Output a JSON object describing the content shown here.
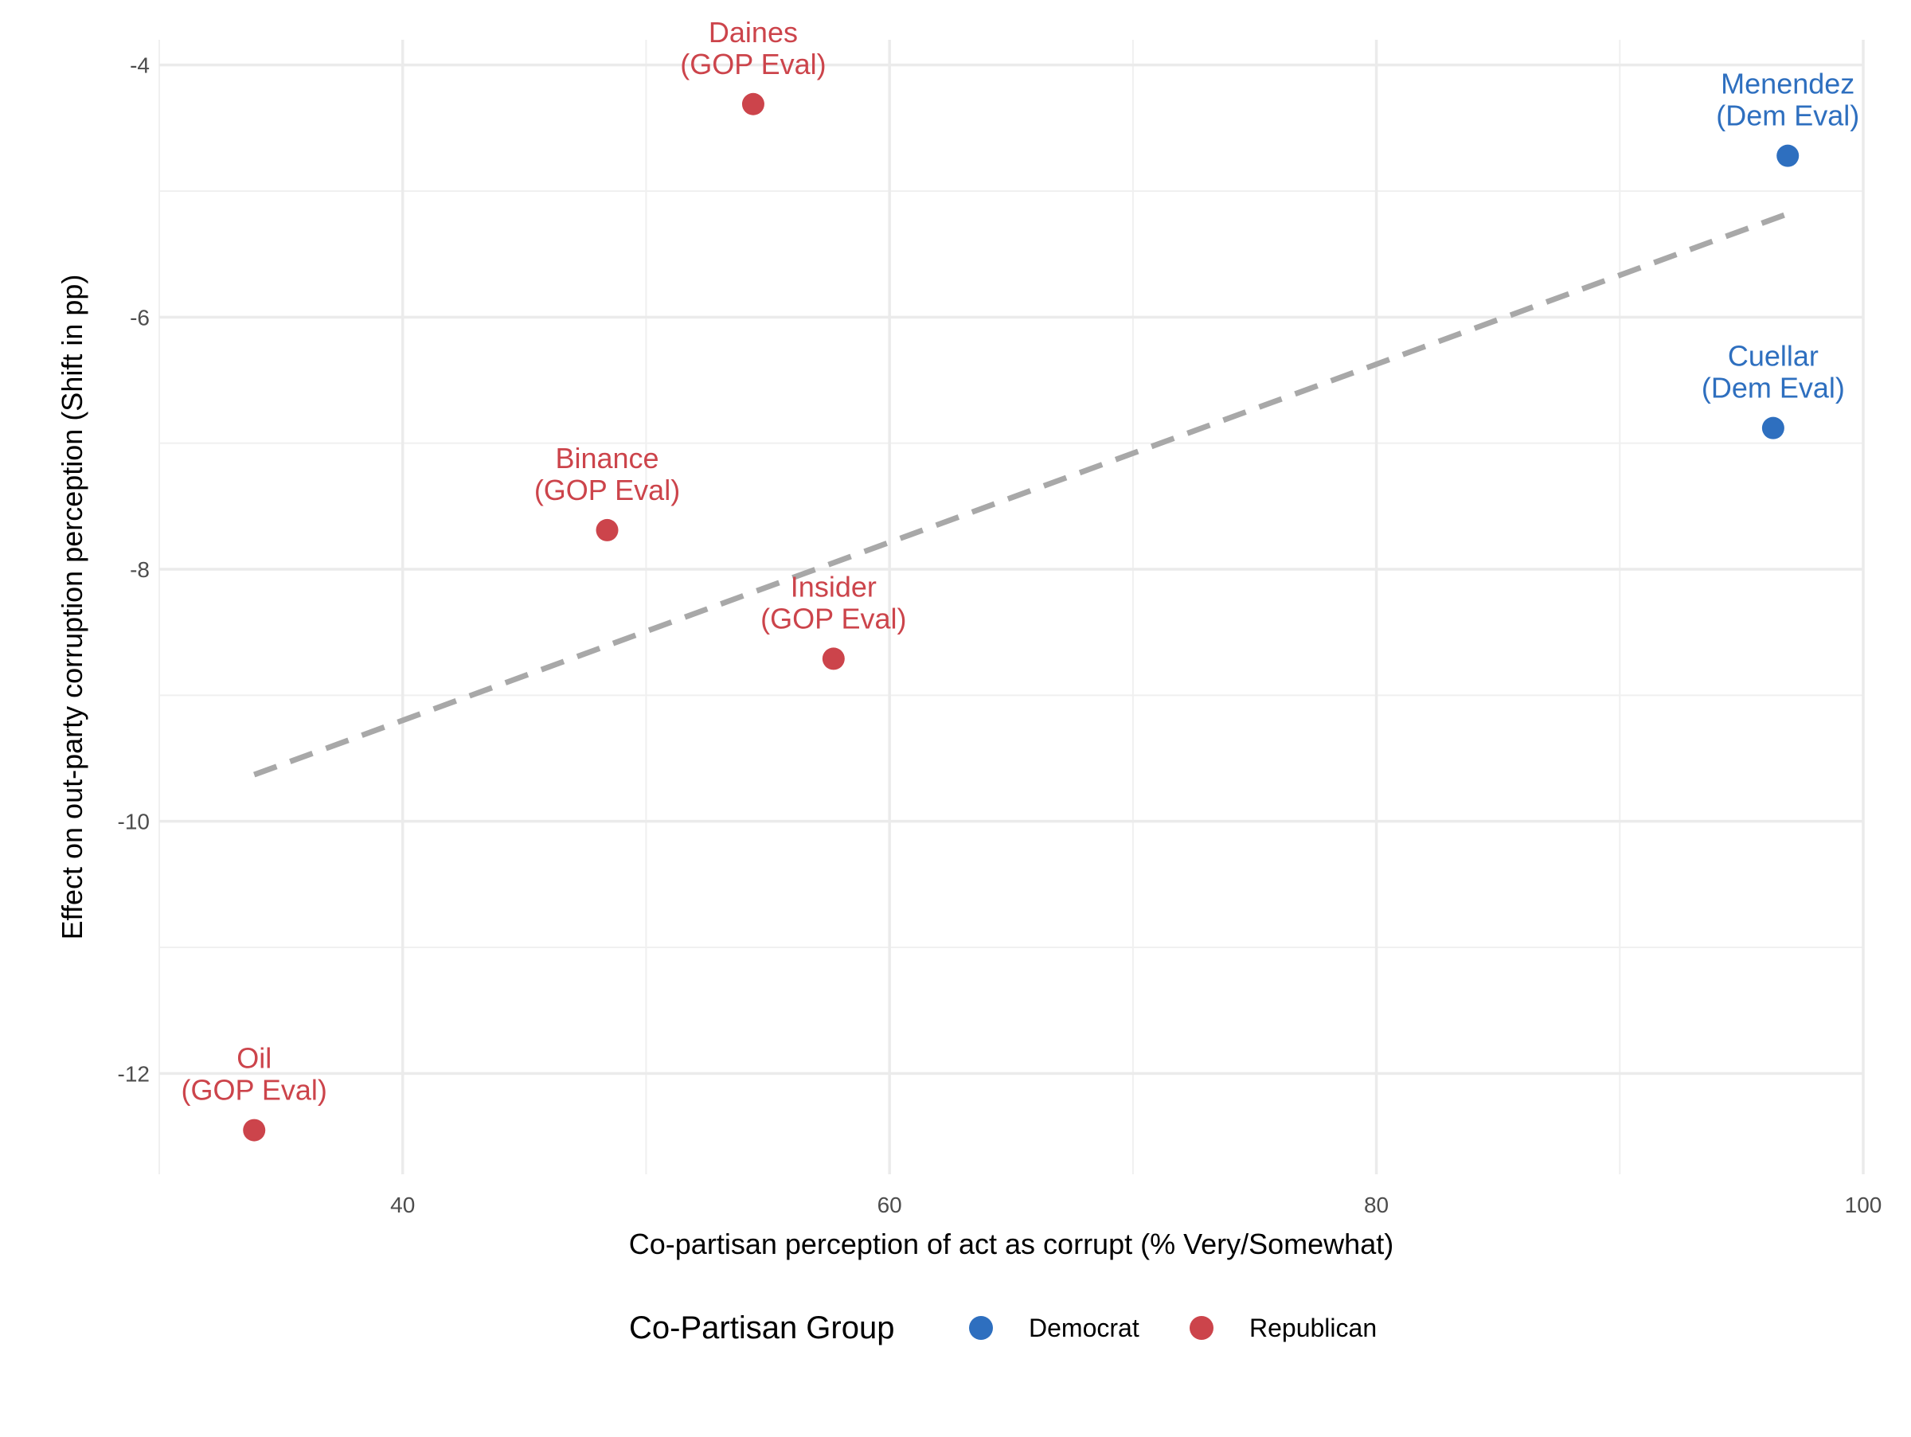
{
  "chart_data": {
    "type": "scatter",
    "title": "",
    "xlabel": "Co-partisan perception of act as corrupt (% Very/Somewhat)",
    "ylabel": "Effect on out-party corruption perception (Shift in pp)",
    "xlim": [
      30,
      100
    ],
    "ylim": [
      -12.8,
      -3.8
    ],
    "x_ticks": [
      40,
      60,
      80,
      100
    ],
    "y_ticks": [
      -12,
      -10,
      -8,
      -6,
      -4
    ],
    "grid": true,
    "legend": {
      "title": "Co-Partisan Group",
      "position": "bottom",
      "entries": [
        {
          "name": "Democrat",
          "color": "#2E6FBF"
        },
        {
          "name": "Republican",
          "color": "#CC444B"
        }
      ]
    },
    "series": [
      {
        "name": "Democrat",
        "color": "#2E6FBF",
        "points": [
          {
            "x": 96.9,
            "y": -4.72,
            "label": [
              "Menendez",
              "(Dem Eval)"
            ]
          },
          {
            "x": 96.3,
            "y": -6.88,
            "label": [
              "Cuellar",
              "(Dem Eval)"
            ]
          }
        ]
      },
      {
        "name": "Republican",
        "color": "#CC444B",
        "points": [
          {
            "x": 54.4,
            "y": -4.31,
            "label": [
              "Daines",
              "(GOP Eval)"
            ]
          },
          {
            "x": 48.4,
            "y": -7.69,
            "label": [
              "Binance",
              "(GOP Eval)"
            ]
          },
          {
            "x": 57.7,
            "y": -8.71,
            "label": [
              "Insider",
              "(GOP Eval)"
            ]
          },
          {
            "x": 33.9,
            "y": -12.45,
            "label": [
              "Oil",
              "(GOP Eval)"
            ]
          }
        ]
      }
    ],
    "trend_line": {
      "style": "dashed",
      "color": "#A8A8A8",
      "x": [
        33.9,
        96.9
      ],
      "y": [
        -9.63,
        -5.18
      ]
    }
  }
}
